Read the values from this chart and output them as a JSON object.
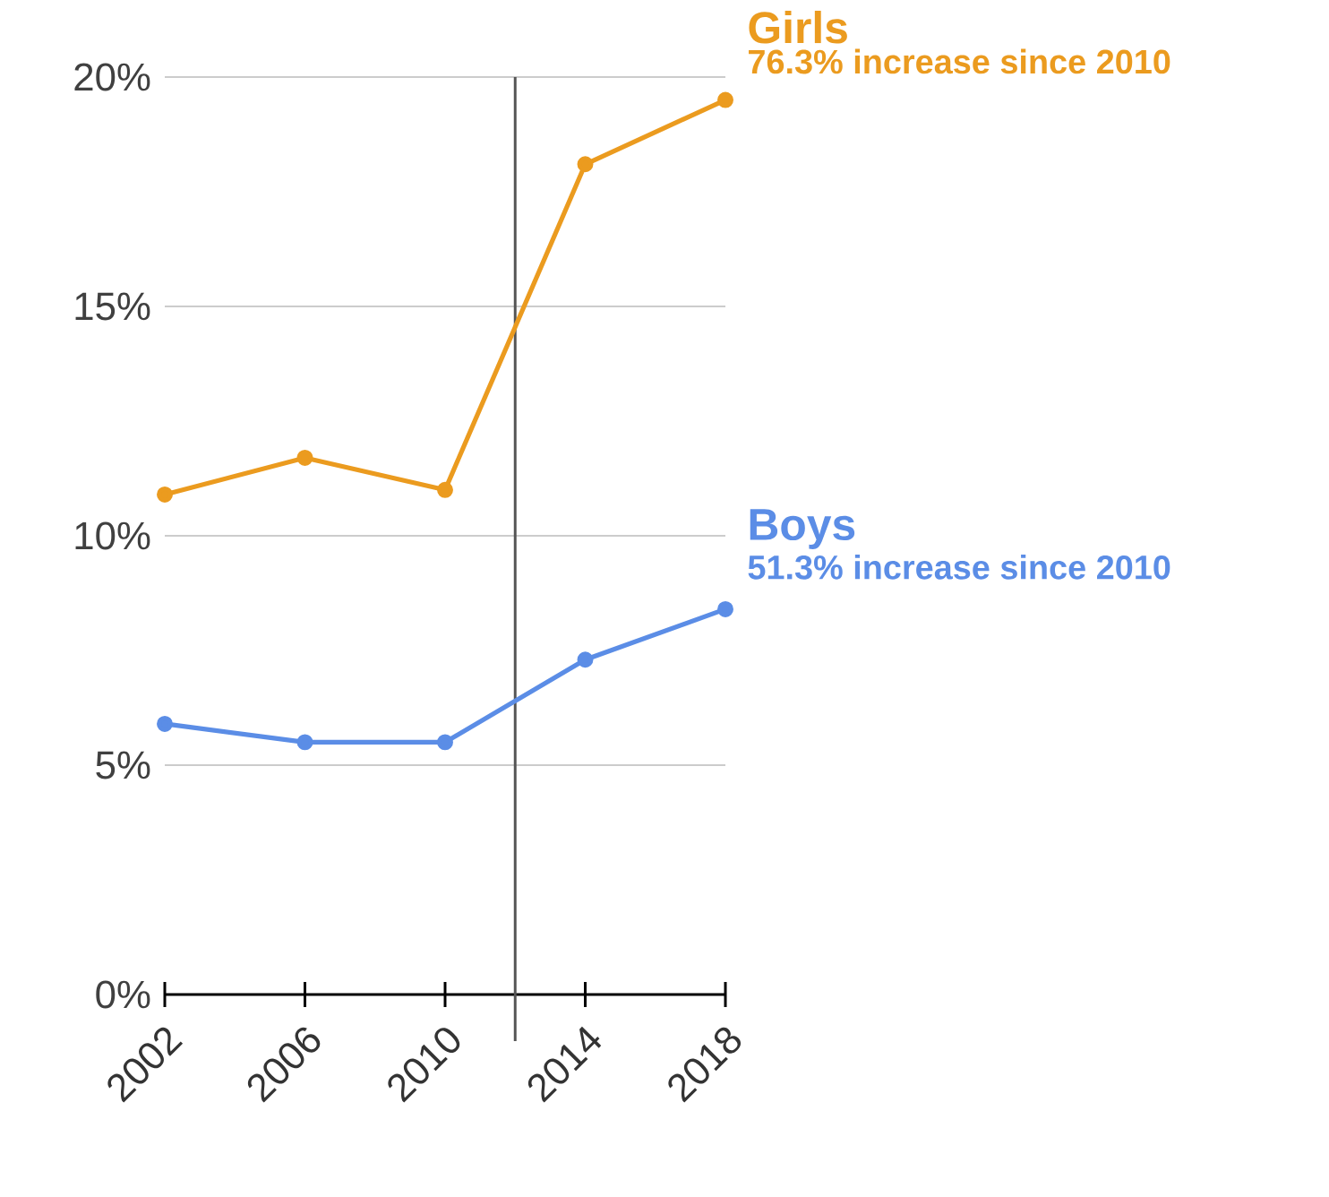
{
  "chart_data": {
    "type": "line",
    "x": [
      2002,
      2006,
      2010,
      2014,
      2018
    ],
    "series": [
      {
        "name": "Girls",
        "color": "#eb9b1f",
        "values": [
          10.9,
          11.7,
          11.0,
          18.1,
          19.5
        ]
      },
      {
        "name": "Boys",
        "color": "#5b8de6",
        "values": [
          5.9,
          5.5,
          5.5,
          7.3,
          8.4
        ]
      }
    ],
    "annotations": [
      "76.3% increase since 2010",
      "51.3% increase since 2010"
    ],
    "xlim": [
      2002,
      2018
    ],
    "xticks": [
      2002,
      2006,
      2010,
      2014,
      2018
    ],
    "ylim": [
      0,
      20
    ],
    "yticks": [
      {
        "value": 0,
        "label": "0%"
      },
      {
        "value": 5,
        "label": "5%"
      },
      {
        "value": 10,
        "label": "10%"
      },
      {
        "value": 15,
        "label": "15%"
      },
      {
        "value": 20,
        "label": "20%"
      }
    ],
    "grid": "y",
    "marker": "circle",
    "line_style": "solid",
    "ref_lines": [
      {
        "axis": "x",
        "value": 2012,
        "color": "#555555"
      }
    ]
  }
}
